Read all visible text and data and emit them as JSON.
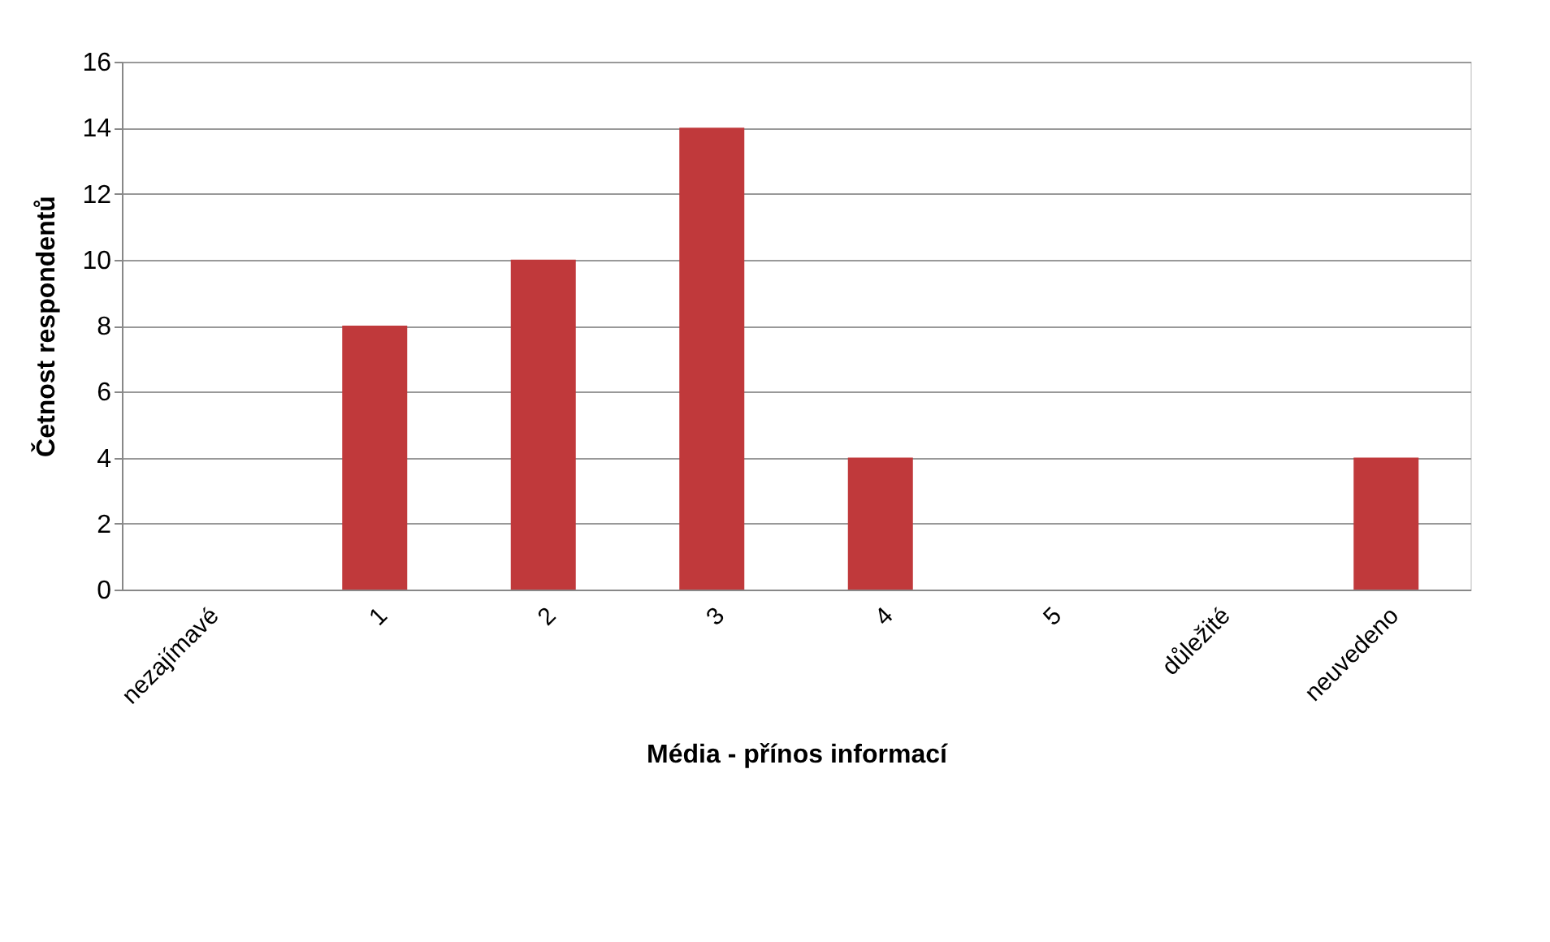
{
  "chart_data": {
    "type": "bar",
    "categories": [
      "nezajímavé",
      "1",
      "2",
      "3",
      "4",
      "5",
      "důležité",
      "neuvedeno"
    ],
    "values": [
      0,
      8,
      10,
      14,
      4,
      0,
      0,
      4
    ],
    "color": "#c0393b",
    "xlabel": "Média - přínos informací",
    "ylabel": "Četnost respondentů",
    "ylim": [
      0,
      16
    ],
    "yticks": [
      0,
      2,
      4,
      6,
      8,
      10,
      12,
      14,
      16
    ],
    "grid": "y",
    "legend": false
  }
}
